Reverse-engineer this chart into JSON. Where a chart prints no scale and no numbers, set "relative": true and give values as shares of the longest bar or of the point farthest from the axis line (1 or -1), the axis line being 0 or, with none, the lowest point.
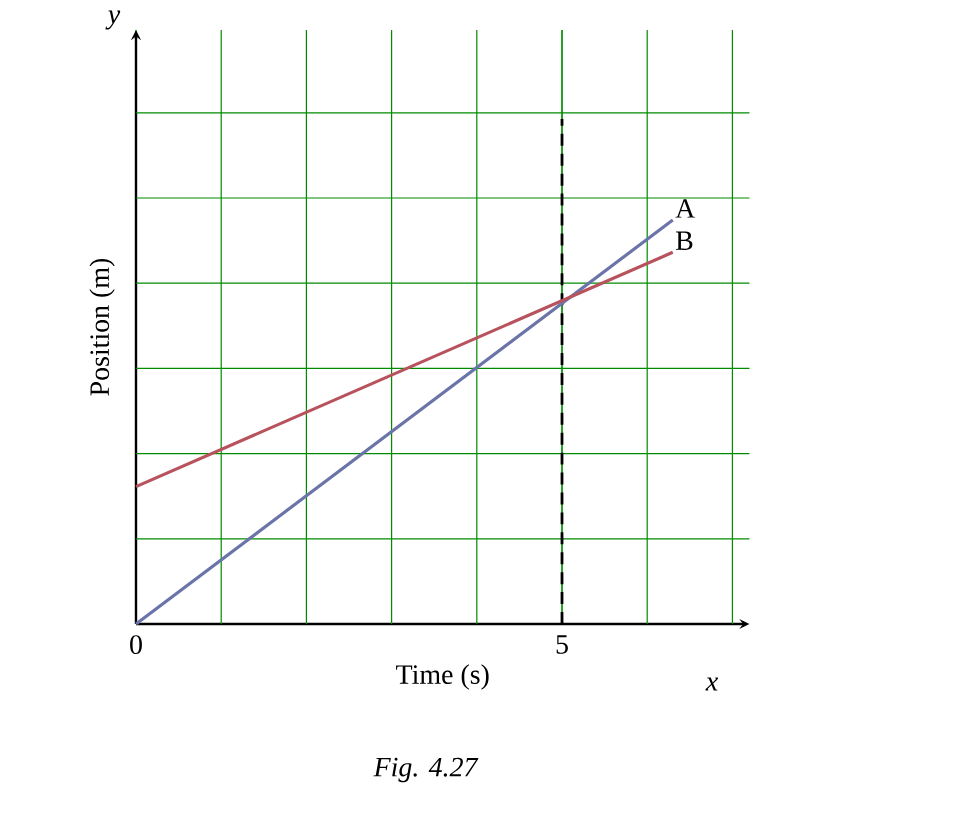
{
  "chart_data": {
    "type": "line",
    "xlabel": "Time (s)",
    "ylabel": "Position (m)",
    "annotations": [
      "*Fig. 4.27*",
      "*x*",
      "*y*"
    ],
    "x": [
      0,
      6.3
    ],
    "xlim": [
      0,
      7.2
    ],
    "xticks": [
      {
        "value": 0,
        "label": "0"
      },
      {
        "value": 5,
        "label": "5"
      }
    ],
    "relative": true,
    "grid": true,
    "series": [
      {
        "name": "A",
        "color": "#6a74a8",
        "values": [
          0,
          1
        ]
      },
      {
        "name": "B",
        "color": "#b8525c",
        "values": [
          0.34,
          0.92
        ]
      }
    ],
    "ref_lines": [
      {
        "axis": "x",
        "value": 5,
        "color": "#000000",
        "line_style": "dashed"
      }
    ]
  }
}
